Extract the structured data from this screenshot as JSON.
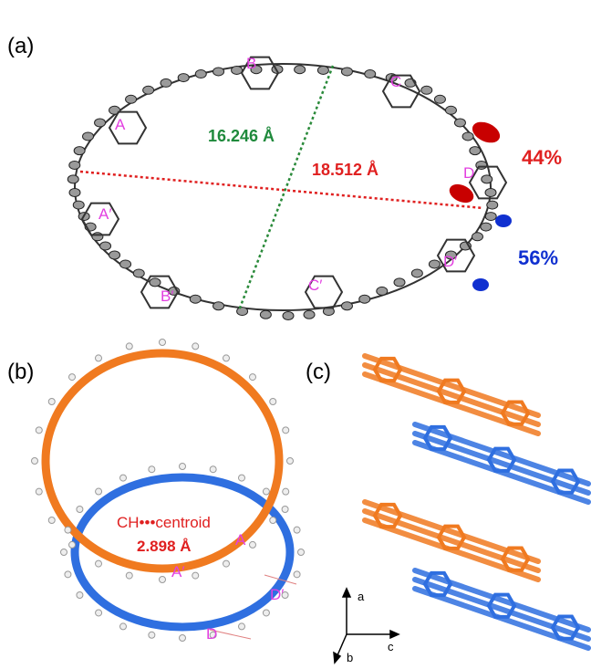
{
  "panel_a": {
    "label": "(a)",
    "rings": [
      "B",
      "C",
      "A",
      "A′",
      "D",
      "B′",
      "D′",
      "C′"
    ],
    "distance_green": "16.246 Å",
    "distance_red": "18.512 Å",
    "occupancy_red": "44%",
    "occupancy_blue": "56%"
  },
  "panel_b": {
    "label": "(b)",
    "annotation": "CH•••centroid",
    "distance": "2.898 Å",
    "rings": [
      "A",
      "A′",
      "D′",
      "D"
    ]
  },
  "panel_c": {
    "label": "(c)",
    "axes": [
      "a",
      "b",
      "c"
    ]
  }
}
